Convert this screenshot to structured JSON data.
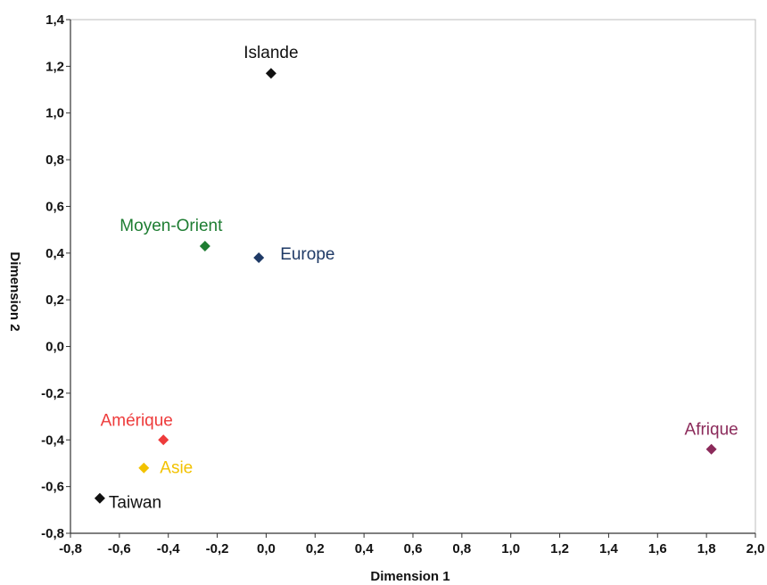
{
  "chart_data": {
    "type": "scatter",
    "title": "",
    "xlabel": "Dimension 1",
    "ylabel": "Dimension 2",
    "xlim": [
      -0.8,
      2.0
    ],
    "ylim": [
      -0.8,
      1.4
    ],
    "x_ticks": [
      "-0,8",
      "-0,6",
      "-0,4",
      "-0,2",
      "0,0",
      "0,2",
      "0,4",
      "0,6",
      "0,8",
      "1,0",
      "1,2",
      "1,4",
      "1,6",
      "1,8",
      "2,0"
    ],
    "y_ticks": [
      "1,4",
      "1,2",
      "1,0",
      "0,8",
      "0,6",
      "0,4",
      "0,2",
      "0,0",
      "-0,2",
      "-0,4",
      "-0,6",
      "-0,8"
    ],
    "grid": false,
    "legend": "none",
    "points": [
      {
        "label": "Islande",
        "x": 0.02,
        "y": 1.17,
        "color": "#111111"
      },
      {
        "label": "Moyen-Orient",
        "x": -0.25,
        "y": 0.43,
        "color": "#1e7d32"
      },
      {
        "label": "Europe",
        "x": -0.03,
        "y": 0.38,
        "color": "#1f3a66"
      },
      {
        "label": "Amérique",
        "x": -0.42,
        "y": -0.4,
        "color": "#ee3b3b"
      },
      {
        "label": "Asie",
        "x": -0.5,
        "y": -0.52,
        "color": "#f2c200"
      },
      {
        "label": "Taiwan",
        "x": -0.68,
        "y": -0.65,
        "color": "#111111"
      },
      {
        "label": "Afrique",
        "x": 1.82,
        "y": -0.44,
        "color": "#8b2a5a"
      }
    ]
  }
}
